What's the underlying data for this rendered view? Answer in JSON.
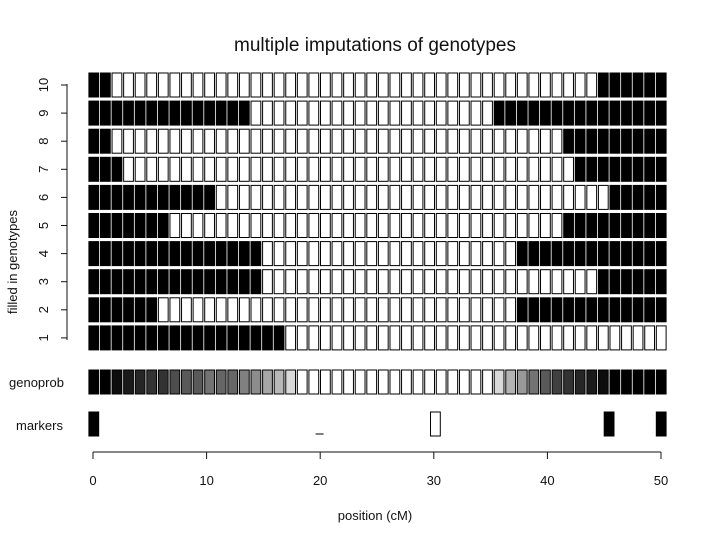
{
  "chart_data": {
    "type": "heatmap",
    "title": "multiple imputations of genotypes",
    "xlabel": "position (cM)",
    "ylabel": "filled in genotypes",
    "xlim": [
      0,
      50
    ],
    "x_ticks": [
      "0",
      "10",
      "20",
      "30",
      "40",
      "50"
    ],
    "y_ticks": [
      "1",
      "2",
      "3",
      "4",
      "5",
      "6",
      "7",
      "8",
      "9",
      "10"
    ],
    "genoprob_label": "genoprob",
    "markers_label": "markers",
    "n_cells": 50,
    "legend": "none",
    "grid": false,
    "rows": [
      {
        "label": "1",
        "black_left_cM": 17.3,
        "black_right_cM": 50
      },
      {
        "label": "2",
        "black_left_cM": 6.5,
        "black_right_cM": 36.8
      },
      {
        "label": "3",
        "black_left_cM": 15.3,
        "black_right_cM": 44.0
      },
      {
        "label": "4",
        "black_left_cM": 15.3,
        "black_right_cM": 36.8
      },
      {
        "label": "5",
        "black_left_cM": 7.5,
        "black_right_cM": 40.6
      },
      {
        "label": "6",
        "black_left_cM": 11.3,
        "black_right_cM": 44.7
      },
      {
        "label": "7",
        "black_left_cM": 3.5,
        "black_right_cM": 41.6
      },
      {
        "label": "8",
        "black_left_cM": 2.5,
        "black_right_cM": 40.6
      },
      {
        "label": "9",
        "black_left_cM": 14.5,
        "black_right_cM": 34.6
      },
      {
        "label": "10",
        "black_left_cM": 2.5,
        "black_right_cM": 43.7
      }
    ],
    "genoprob_gray": [
      0.0,
      0.0,
      0.05,
      0.1,
      0.15,
      0.2,
      0.2,
      0.3,
      0.35,
      0.35,
      0.45,
      0.4,
      0.4,
      0.5,
      0.55,
      0.65,
      0.72,
      0.85,
      1,
      1,
      1,
      1,
      1,
      1,
      1,
      1,
      1,
      1,
      1,
      1,
      1,
      1,
      1,
      1,
      1,
      0.85,
      0.7,
      0.6,
      0.45,
      0.35,
      0.25,
      0.2,
      0.15,
      0.1,
      0.05,
      0.0,
      0.0,
      0.0,
      0.0,
      0.0
    ],
    "markers": [
      {
        "x_cM": 0.0,
        "type": "full"
      },
      {
        "x_cM": 20.0,
        "type": "dash"
      },
      {
        "x_cM": 30.0,
        "type": "open"
      },
      {
        "x_cM": 45.0,
        "type": "full"
      },
      {
        "x_cM": 50.0,
        "type": "full"
      }
    ]
  }
}
